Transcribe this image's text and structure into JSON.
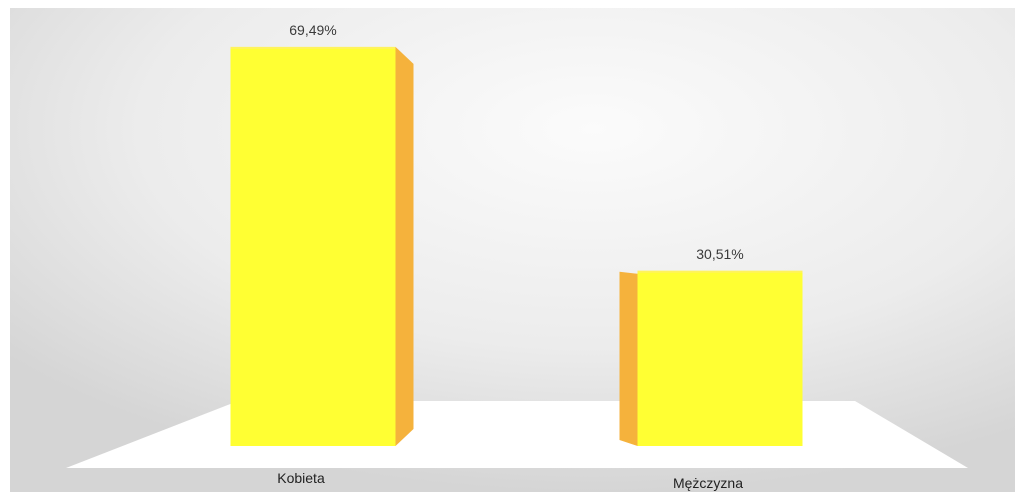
{
  "chart_data": {
    "type": "bar",
    "categories": [
      "Kobieta",
      "Mężczyzna"
    ],
    "values": [
      69.49,
      30.51
    ],
    "data_labels": [
      "69,49%",
      "30,51%"
    ],
    "unit": "%",
    "ylim": [
      0,
      70
    ],
    "grid": false,
    "legend": "none",
    "style": "3d-columns"
  },
  "colors": {
    "bar_front": "#ffff33",
    "bar_side": "#f5b23c",
    "bar_top": "#fff35c",
    "floor": "#ffffff",
    "background_center": "#fbfbfb",
    "background_edge": "#d9d9d9"
  }
}
